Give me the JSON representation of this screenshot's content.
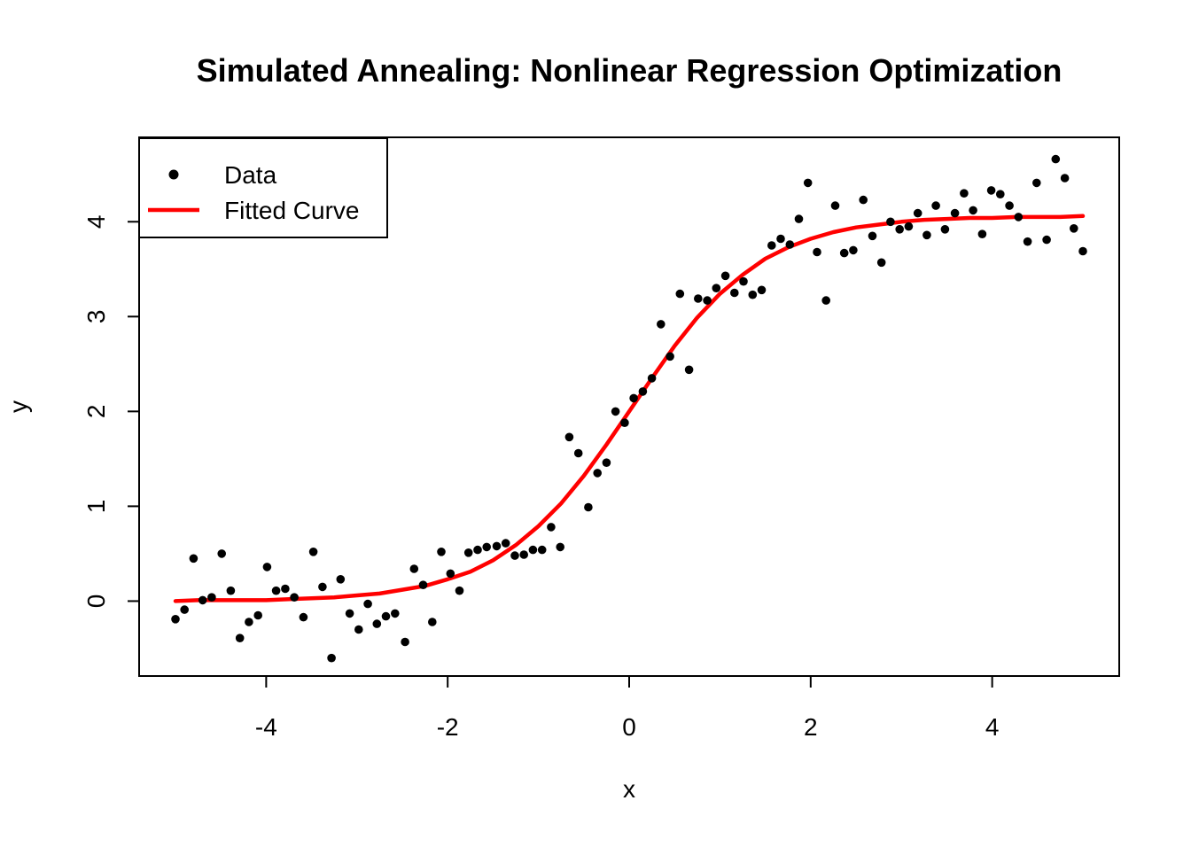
{
  "title": "Simulated Annealing: Nonlinear Regression Optimization",
  "axes": {
    "xlabel": "x",
    "ylabel": "y",
    "x_tick_labels": [
      "-4",
      "-2",
      "0",
      "2",
      "4"
    ],
    "y_tick_labels": [
      "0",
      "1",
      "2",
      "3",
      "4"
    ]
  },
  "legend": {
    "items": [
      {
        "label": "Data",
        "marker": "point",
        "color": "#000000"
      },
      {
        "label": "Fitted Curve",
        "marker": "line",
        "color": "#ff0000"
      }
    ]
  },
  "colors": {
    "background": "#ffffff",
    "frame": "#000000",
    "data_points": "#000000",
    "fitted_curve": "#ff0000"
  },
  "chart_data": {
    "type": "scatter",
    "title": "Simulated Annealing: Nonlinear Regression Optimization",
    "xlabel": "x",
    "ylabel": "y",
    "xlim": [
      -5.4,
      5.4
    ],
    "ylim": [
      -0.79,
      4.89
    ],
    "x_ticks": [
      -4,
      -2,
      0,
      2,
      4
    ],
    "y_ticks": [
      0,
      1,
      2,
      3,
      4
    ],
    "grid": false,
    "legend_position": "topleft",
    "series": [
      {
        "name": "Data",
        "type": "scatter",
        "color": "#000000",
        "points": [
          [
            -5.0,
            -0.19
          ],
          [
            -4.9,
            -0.09
          ],
          [
            -4.8,
            0.45
          ],
          [
            -4.7,
            0.01
          ],
          [
            -4.6,
            0.04
          ],
          [
            -4.49,
            0.5
          ],
          [
            -4.39,
            0.11
          ],
          [
            -4.29,
            -0.39
          ],
          [
            -4.19,
            -0.22
          ],
          [
            -4.09,
            -0.15
          ],
          [
            -3.99,
            0.36
          ],
          [
            -3.89,
            0.11
          ],
          [
            -3.79,
            0.13
          ],
          [
            -3.69,
            0.04
          ],
          [
            -3.59,
            -0.17
          ],
          [
            -3.48,
            0.52
          ],
          [
            -3.38,
            0.15
          ],
          [
            -3.28,
            -0.6
          ],
          [
            -3.18,
            0.23
          ],
          [
            -3.08,
            -0.13
          ],
          [
            -2.98,
            -0.3
          ],
          [
            -2.88,
            -0.03
          ],
          [
            -2.78,
            -0.24
          ],
          [
            -2.68,
            -0.16
          ],
          [
            -2.58,
            -0.13
          ],
          [
            -2.47,
            -0.43
          ],
          [
            -2.37,
            0.34
          ],
          [
            -2.27,
            0.17
          ],
          [
            -2.17,
            -0.22
          ],
          [
            -2.07,
            0.52
          ],
          [
            -1.97,
            0.29
          ],
          [
            -1.87,
            0.11
          ],
          [
            -1.77,
            0.51
          ],
          [
            -1.67,
            0.54
          ],
          [
            -1.57,
            0.57
          ],
          [
            -1.46,
            0.58
          ],
          [
            -1.36,
            0.61
          ],
          [
            -1.26,
            0.48
          ],
          [
            -1.16,
            0.49
          ],
          [
            -1.06,
            0.54
          ],
          [
            -0.96,
            0.54
          ],
          [
            -0.86,
            0.78
          ],
          [
            -0.76,
            0.57
          ],
          [
            -0.66,
            1.73
          ],
          [
            -0.56,
            1.56
          ],
          [
            -0.45,
            0.99
          ],
          [
            -0.35,
            1.35
          ],
          [
            -0.25,
            1.46
          ],
          [
            -0.15,
            2.0
          ],
          [
            -0.05,
            1.88
          ],
          [
            0.05,
            2.14
          ],
          [
            0.15,
            2.21
          ],
          [
            0.25,
            2.35
          ],
          [
            0.35,
            2.92
          ],
          [
            0.45,
            2.58
          ],
          [
            0.56,
            3.24
          ],
          [
            0.66,
            2.44
          ],
          [
            0.76,
            3.19
          ],
          [
            0.86,
            3.17
          ],
          [
            0.96,
            3.3
          ],
          [
            1.06,
            3.43
          ],
          [
            1.16,
            3.25
          ],
          [
            1.26,
            3.37
          ],
          [
            1.36,
            3.23
          ],
          [
            1.46,
            3.28
          ],
          [
            1.57,
            3.75
          ],
          [
            1.67,
            3.82
          ],
          [
            1.77,
            3.76
          ],
          [
            1.87,
            4.03
          ],
          [
            1.97,
            4.41
          ],
          [
            2.07,
            3.68
          ],
          [
            2.17,
            3.17
          ],
          [
            2.27,
            4.17
          ],
          [
            2.37,
            3.67
          ],
          [
            2.47,
            3.7
          ],
          [
            2.58,
            4.23
          ],
          [
            2.68,
            3.85
          ],
          [
            2.78,
            3.57
          ],
          [
            2.88,
            4.0
          ],
          [
            2.98,
            3.92
          ],
          [
            3.08,
            3.95
          ],
          [
            3.18,
            4.09
          ],
          [
            3.28,
            3.86
          ],
          [
            3.38,
            4.17
          ],
          [
            3.48,
            3.92
          ],
          [
            3.59,
            4.09
          ],
          [
            3.69,
            4.3
          ],
          [
            3.79,
            4.12
          ],
          [
            3.89,
            3.87
          ],
          [
            3.99,
            4.33
          ],
          [
            4.09,
            4.29
          ],
          [
            4.19,
            4.17
          ],
          [
            4.29,
            4.05
          ],
          [
            4.39,
            3.79
          ],
          [
            4.49,
            4.41
          ],
          [
            4.6,
            3.81
          ],
          [
            4.7,
            4.66
          ],
          [
            4.8,
            4.46
          ],
          [
            4.9,
            3.93
          ],
          [
            5.0,
            3.69
          ]
        ]
      },
      {
        "name": "Fitted Curve",
        "type": "line",
        "color": "#ff0000",
        "points": [
          [
            -5.0,
            0.0
          ],
          [
            -4.75,
            0.01
          ],
          [
            -4.5,
            0.01
          ],
          [
            -4.25,
            0.01
          ],
          [
            -4.0,
            0.01
          ],
          [
            -3.75,
            0.02
          ],
          [
            -3.5,
            0.03
          ],
          [
            -3.25,
            0.04
          ],
          [
            -3.0,
            0.06
          ],
          [
            -2.75,
            0.08
          ],
          [
            -2.5,
            0.12
          ],
          [
            -2.25,
            0.16
          ],
          [
            -2.0,
            0.23
          ],
          [
            -1.75,
            0.31
          ],
          [
            -1.5,
            0.43
          ],
          [
            -1.25,
            0.59
          ],
          [
            -1.0,
            0.79
          ],
          [
            -0.75,
            1.03
          ],
          [
            -0.5,
            1.32
          ],
          [
            -0.25,
            1.65
          ],
          [
            0.0,
            2.0
          ],
          [
            0.25,
            2.35
          ],
          [
            0.5,
            2.69
          ],
          [
            0.75,
            2.99
          ],
          [
            1.0,
            3.24
          ],
          [
            1.25,
            3.44
          ],
          [
            1.5,
            3.61
          ],
          [
            1.75,
            3.73
          ],
          [
            2.0,
            3.82
          ],
          [
            2.25,
            3.89
          ],
          [
            2.5,
            3.94
          ],
          [
            2.75,
            3.97
          ],
          [
            3.0,
            4.0
          ],
          [
            3.25,
            4.02
          ],
          [
            3.5,
            4.03
          ],
          [
            3.75,
            4.04
          ],
          [
            4.0,
            4.04
          ],
          [
            4.25,
            4.05
          ],
          [
            4.5,
            4.05
          ],
          [
            4.75,
            4.05
          ],
          [
            5.0,
            4.06
          ]
        ]
      }
    ]
  }
}
